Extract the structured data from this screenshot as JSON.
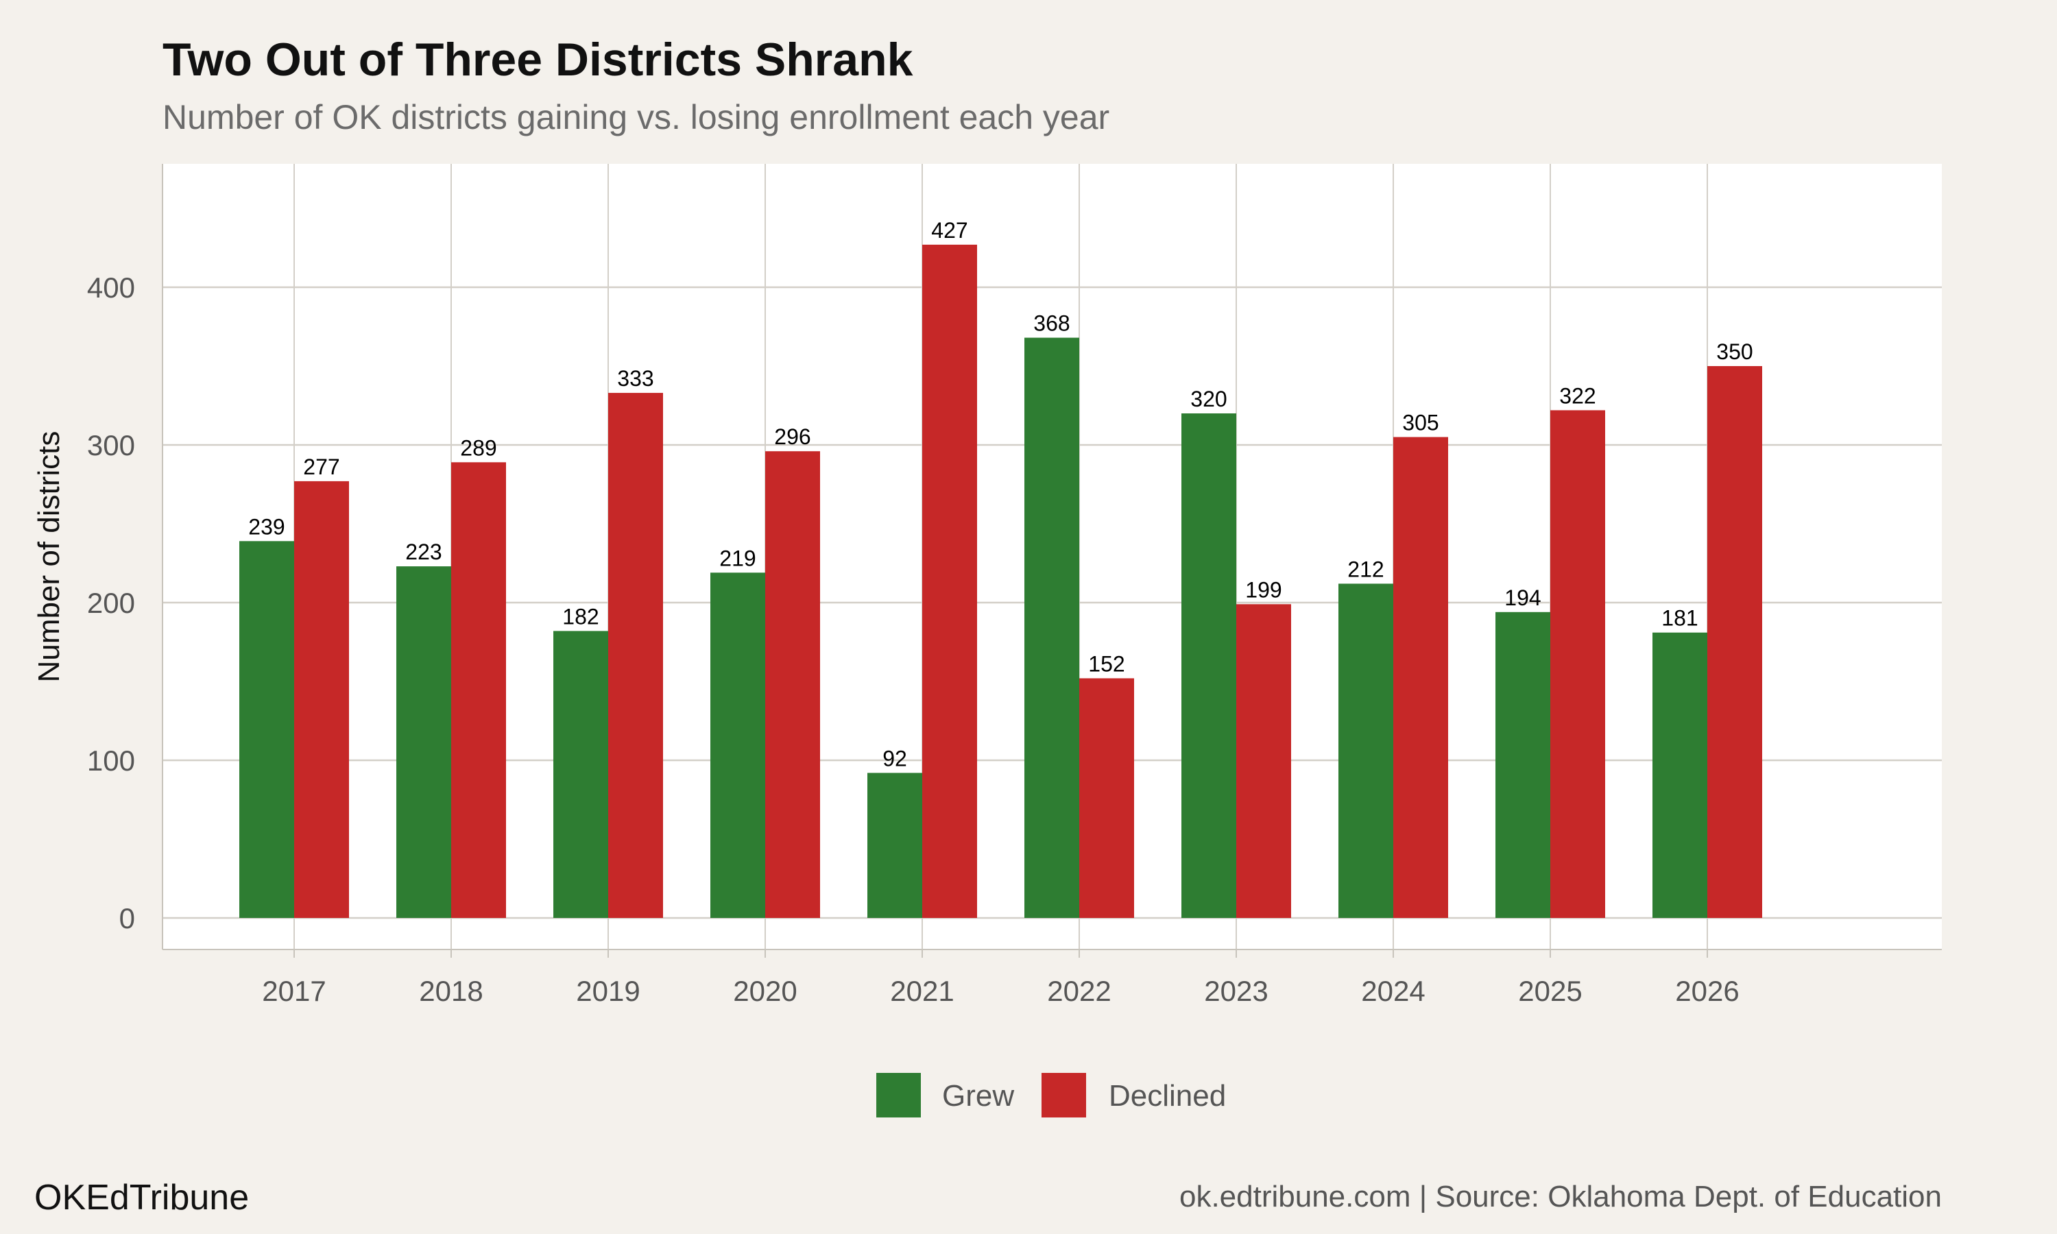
{
  "title": "Two Out of Three Districts Shrank",
  "subtitle": "Number of OK districts gaining vs. losing enrollment each year",
  "footer": {
    "brand": "OKEdTribune",
    "source": "ok.edtribune.com | Source: Oklahoma Dept. of Education"
  },
  "chart_data": {
    "type": "bar",
    "title": "Two Out of Three Districts Shrank",
    "subtitle": "Number of OK districts gaining vs. losing enrollment each year",
    "xlabel": "",
    "ylabel": "Number of districts",
    "categories": [
      "2017",
      "2018",
      "2019",
      "2020",
      "2021",
      "2022",
      "2023",
      "2024",
      "2025",
      "2026"
    ],
    "series": [
      {
        "name": "Grew",
        "color": "#2e7d32",
        "values": [
          239,
          223,
          182,
          219,
          92,
          368,
          320,
          212,
          194,
          181
        ]
      },
      {
        "name": "Declined",
        "color": "#c62828",
        "values": [
          277,
          289,
          333,
          296,
          427,
          152,
          199,
          305,
          322,
          350
        ]
      }
    ],
    "yticks": [
      0,
      100,
      200,
      300,
      400
    ],
    "ylim": [
      -20,
      480
    ],
    "grid": true,
    "legend": "bottom",
    "data_labels": true
  }
}
